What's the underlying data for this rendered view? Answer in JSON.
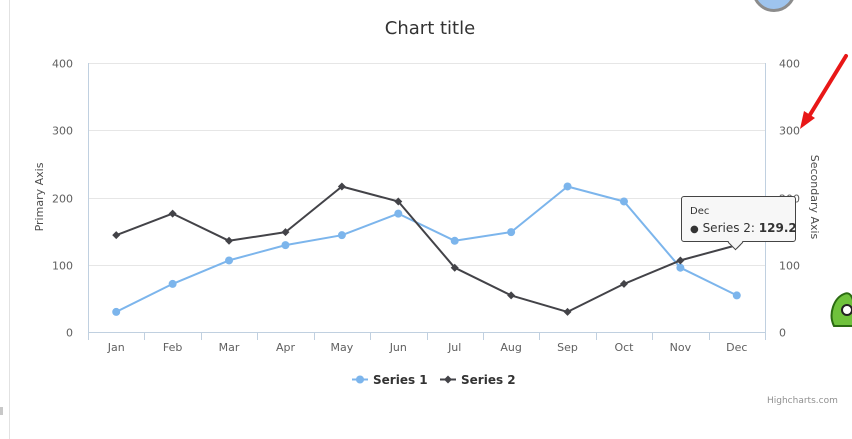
{
  "chart_data": {
    "type": "line",
    "title": "Chart title",
    "categories": [
      "Jan",
      "Feb",
      "Mar",
      "Apr",
      "May",
      "Jun",
      "Jul",
      "Aug",
      "Sep",
      "Oct",
      "Nov",
      "Dec"
    ],
    "series": [
      {
        "name": "Series 1",
        "axis": "primary",
        "color": "#7cb5ec",
        "marker": "circle",
        "values": [
          29.9,
          71.5,
          106.4,
          129.2,
          144.0,
          176.0,
          135.6,
          148.5,
          216.4,
          194.1,
          95.6,
          54.4
        ]
      },
      {
        "name": "Series 2",
        "axis": "secondary",
        "color": "#434348",
        "marker": "diamond",
        "values": [
          144.0,
          176.0,
          135.6,
          148.5,
          216.4,
          194.1,
          95.6,
          54.4,
          29.9,
          71.5,
          106.4,
          129.2
        ]
      }
    ],
    "ylabel": "Primary Axis",
    "y2label": "Secondary Axis",
    "ylim": [
      0,
      400
    ],
    "y2lim": [
      0,
      400
    ],
    "yticks": [
      "0",
      "100",
      "200",
      "300",
      "400"
    ],
    "y2ticks": [
      "0",
      "100",
      "200",
      "300",
      "400"
    ],
    "grid": true,
    "legend": "bottom-center"
  },
  "tooltip": {
    "header": "Dec",
    "series": "Series 2",
    "value": "129.2"
  },
  "credits": "Highcharts.com"
}
